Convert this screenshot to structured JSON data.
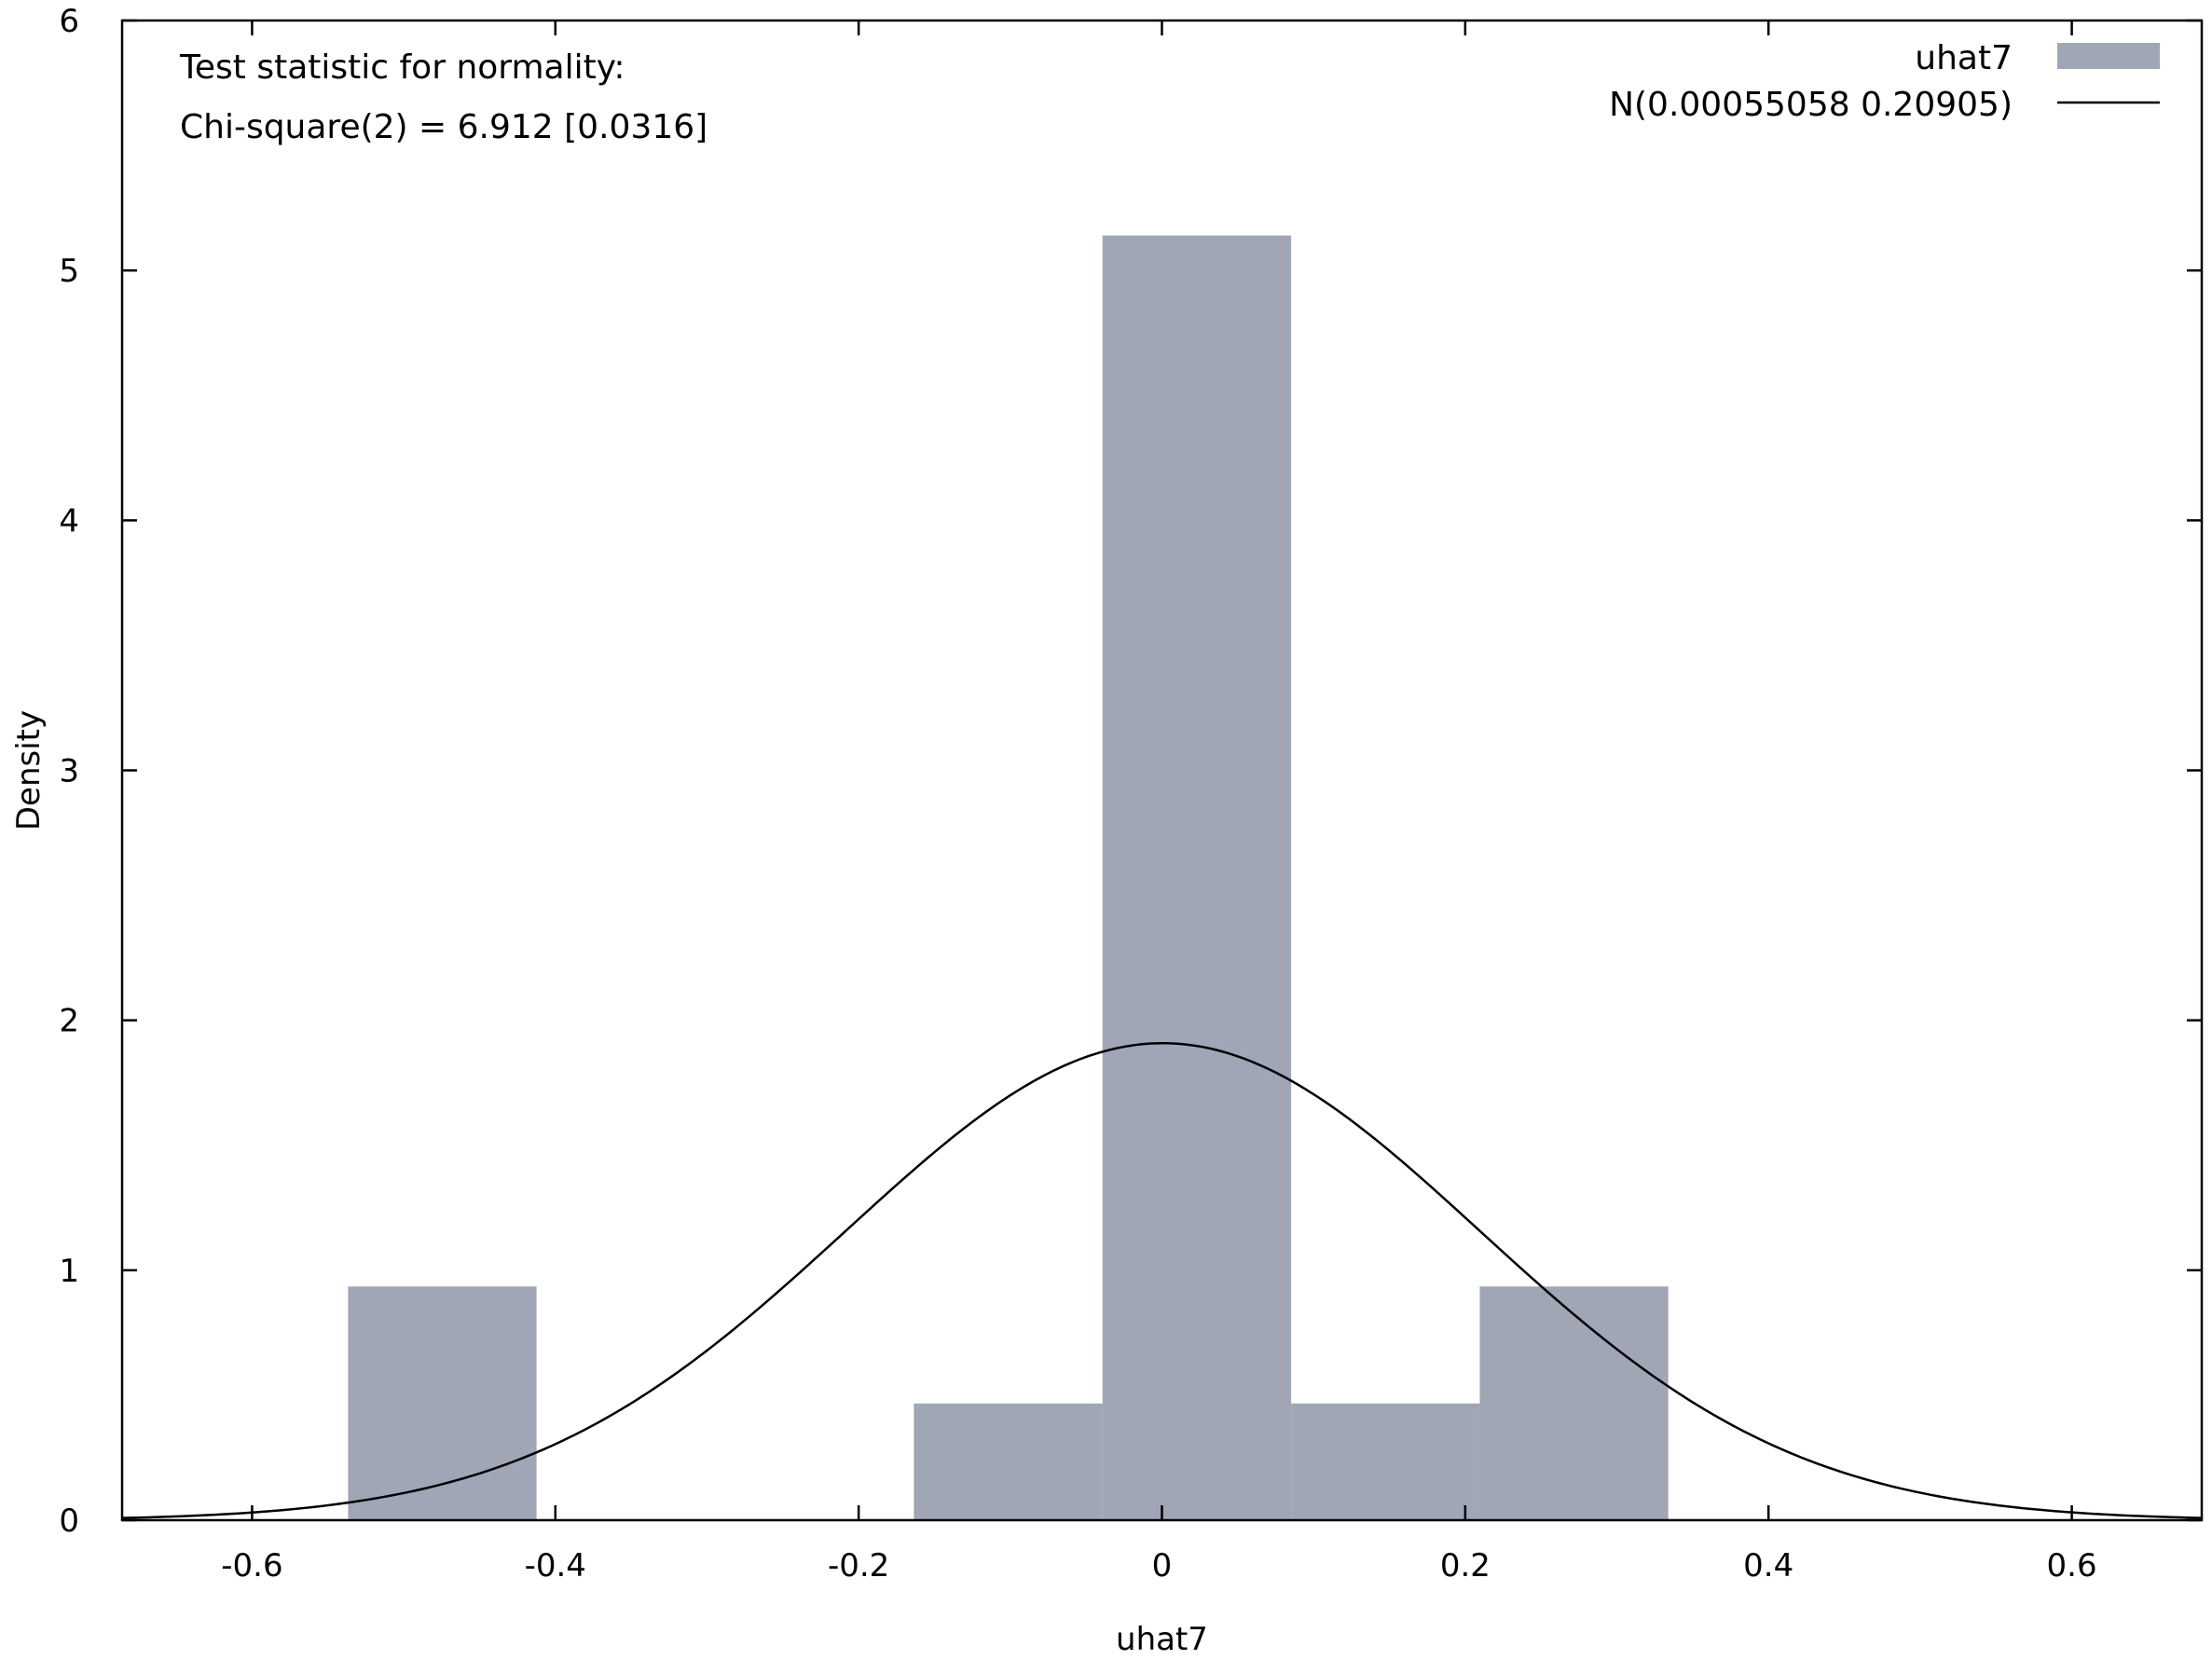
{
  "chart_data": {
    "type": "bar",
    "xlabel": "uhat7",
    "ylabel": "Density",
    "xlim": [
      -0.6857,
      0.6857
    ],
    "ylim": [
      0,
      6
    ],
    "xticks": [
      -0.6,
      -0.4,
      -0.2,
      0,
      0.2,
      0.4,
      0.6
    ],
    "yticks": [
      0,
      1,
      2,
      3,
      4,
      5,
      6
    ],
    "xtick_labels": [
      "-0.6",
      "-0.4",
      "-0.2",
      "0",
      "0.2",
      "0.4",
      "0.6"
    ],
    "ytick_labels": [
      "0",
      "1",
      "2",
      "3",
      "4",
      "5",
      "6"
    ],
    "annotations": [
      "Test statistic for normality:",
      "Chi-square(2) = 6.912 [0.0316]"
    ],
    "legend_position": "top-right",
    "series": [
      {
        "name": "uhat7",
        "kind": "histogram",
        "color": "#a0a6b6",
        "bins": [
          {
            "x0": -0.5367,
            "x1": -0.4124,
            "density": 0.935
          },
          {
            "x0": -0.1636,
            "x1": -0.0392,
            "density": 0.467
          },
          {
            "x0": -0.0392,
            "x1": 0.0852,
            "density": 5.14
          },
          {
            "x0": 0.0852,
            "x1": 0.2096,
            "density": 0.467
          },
          {
            "x0": 0.2096,
            "x1": 0.3339,
            "density": 0.935
          }
        ]
      },
      {
        "name": "N(0.00055058 0.20905)",
        "kind": "normal_curve",
        "color": "#000000",
        "mean": 0.00055058,
        "sd": 0.20905
      }
    ]
  }
}
